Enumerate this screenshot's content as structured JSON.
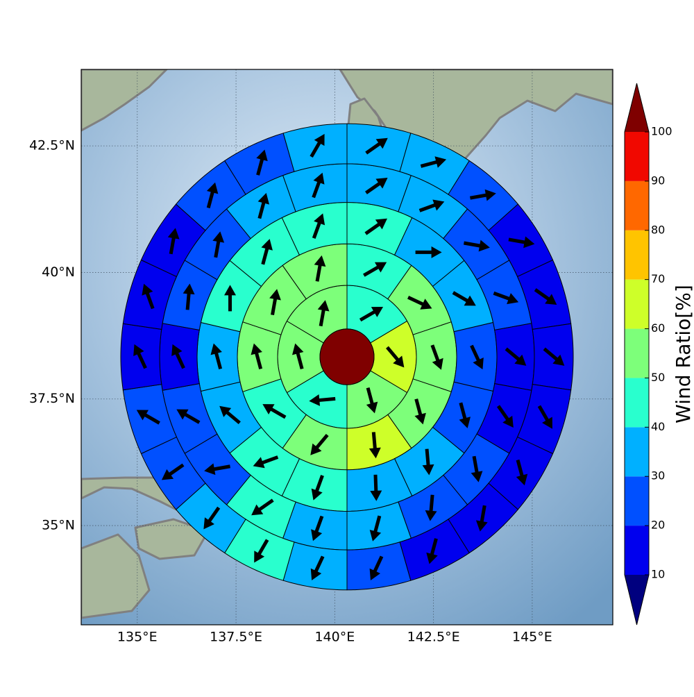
{
  "chart_data": {
    "type": "polar-map",
    "xlim": [
      133.58,
      147.04
    ],
    "ylim": [
      33.04,
      44.01
    ],
    "xticks": [
      {
        "value": 135,
        "label": "135°E"
      },
      {
        "value": 137.5,
        "label": "137.5°E"
      },
      {
        "value": 140,
        "label": "140°E"
      },
      {
        "value": 142.5,
        "label": "142.5°E"
      },
      {
        "value": 145,
        "label": "145°E"
      }
    ],
    "yticks": [
      {
        "value": 35,
        "label": "35°N"
      },
      {
        "value": 37.5,
        "label": "37.5°N"
      },
      {
        "value": 40,
        "label": "40°N"
      },
      {
        "value": 42.5,
        "label": "42.5°N"
      }
    ],
    "grid": true,
    "colorbar": {
      "label": "Wind Ratio[%]",
      "ticks": [
        10,
        20,
        30,
        40,
        50,
        60,
        70,
        80,
        90,
        100
      ],
      "colors": [
        "#0000ee",
        "#0050ff",
        "#00b0ff",
        "#29ffce",
        "#7dff7a",
        "#ceff29",
        "#ffc400",
        "#ff6800",
        "#f10800"
      ],
      "under_color": "#00007f",
      "over_color": "#7f0000"
    },
    "center_value": 100,
    "rings": [
      {
        "values": [
          45,
          65,
          55,
          45,
          55,
          55
        ],
        "directions": [
          60,
          140,
          165,
          265,
          345,
          10
        ]
      },
      {
        "values": [
          45,
          55,
          55,
          55,
          65,
          55,
          45,
          55,
          55,
          55
        ],
        "directions": [
          60,
          115,
          160,
          165,
          175,
          220,
          300,
          345,
          10,
          10
        ]
      },
      {
        "values": [
          45,
          35,
          35,
          25,
          25,
          35,
          35,
          45,
          45,
          35,
          35,
          45,
          45,
          45
        ],
        "directions": [
          55,
          90,
          120,
          155,
          165,
          175,
          178,
          200,
          250,
          310,
          345,
          0,
          15,
          20
        ]
      },
      {
        "values": [
          35,
          35,
          25,
          25,
          15,
          15,
          25,
          25,
          35,
          35,
          45,
          25,
          25,
          15,
          25,
          25,
          35,
          35
        ],
        "directions": [
          55,
          70,
          100,
          110,
          130,
          145,
          170,
          185,
          195,
          200,
          235,
          260,
          300,
          335,
          5,
          10,
          15,
          20
        ]
      },
      {
        "values": [
          35,
          35,
          25,
          15,
          15,
          15,
          15,
          15,
          15,
          15,
          25,
          35,
          45,
          35,
          25,
          25,
          15,
          15,
          15,
          25,
          25,
          35
        ],
        "directions": [
          55,
          75,
          80,
          100,
          125,
          130,
          150,
          165,
          190,
          195,
          205,
          205,
          210,
          215,
          235,
          300,
          335,
          340,
          10,
          15,
          15,
          30
        ]
      }
    ]
  }
}
